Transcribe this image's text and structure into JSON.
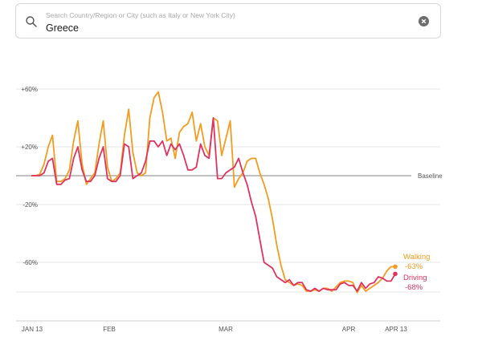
{
  "search": {
    "placeholder": "Search Country/Region or City (such as Italy or New York City)",
    "value": "Greece"
  },
  "colors": {
    "walking": "#f39c1f",
    "driving": "#e0335f",
    "baseline": "#9a9a9a",
    "grid": "#e6e6e6"
  },
  "chart_data": {
    "type": "line",
    "y_ticks": [
      "+60%",
      "+20%",
      "-20%",
      "-60%"
    ],
    "x_ticks": [
      "JAN 13",
      "FEB",
      "MAR",
      "APR",
      "APR 13"
    ],
    "baseline_label": "Baseline",
    "x_start": "2020-01-13",
    "x_end": "2020-04-13",
    "series": [
      {
        "name": "Walking",
        "end_label": "-63%",
        "color": "#f39c1f",
        "values": [
          0,
          0,
          1,
          8,
          20,
          28,
          -4,
          -4,
          -2,
          4,
          24,
          38,
          8,
          -6,
          -2,
          2,
          22,
          38,
          6,
          -4,
          -2,
          2,
          28,
          46,
          16,
          2,
          0,
          2,
          40,
          54,
          58,
          44,
          24,
          26,
          12,
          30,
          34,
          36,
          44,
          24,
          36,
          20,
          14,
          40,
          38,
          14,
          26,
          38,
          -8,
          -2,
          2,
          10,
          12,
          12,
          2,
          -6,
          -16,
          -30,
          -48,
          -62,
          -72,
          -74,
          -76,
          -75,
          -76,
          -80,
          -80,
          -79,
          -80,
          -78,
          -78,
          -80,
          -77,
          -74,
          -73,
          -73,
          -74,
          -81,
          -76,
          -80,
          -78,
          -76,
          -74,
          -71,
          -66,
          -63,
          -63
        ]
      },
      {
        "name": "Driving",
        "end_label": "-68%",
        "color": "#e0335f",
        "values": [
          0,
          0,
          0,
          2,
          10,
          12,
          -6,
          -6,
          -3,
          -2,
          12,
          20,
          4,
          -4,
          -4,
          0,
          12,
          20,
          -2,
          -4,
          -4,
          0,
          22,
          20,
          -2,
          0,
          2,
          10,
          24,
          24,
          20,
          24,
          14,
          22,
          18,
          22,
          14,
          4,
          4,
          6,
          22,
          14,
          12,
          40,
          -2,
          -2,
          2,
          4,
          6,
          12,
          2,
          -6,
          -18,
          -28,
          -44,
          -60,
          -62,
          -64,
          -70,
          -72,
          -74,
          -72,
          -76,
          -74,
          -74,
          -79,
          -80,
          -78,
          -80,
          -78,
          -79,
          -79,
          -79,
          -75,
          -74,
          -76,
          -76,
          -80,
          -74,
          -78,
          -75,
          -74,
          -70,
          -71,
          -73,
          -73,
          -68
        ]
      }
    ]
  }
}
